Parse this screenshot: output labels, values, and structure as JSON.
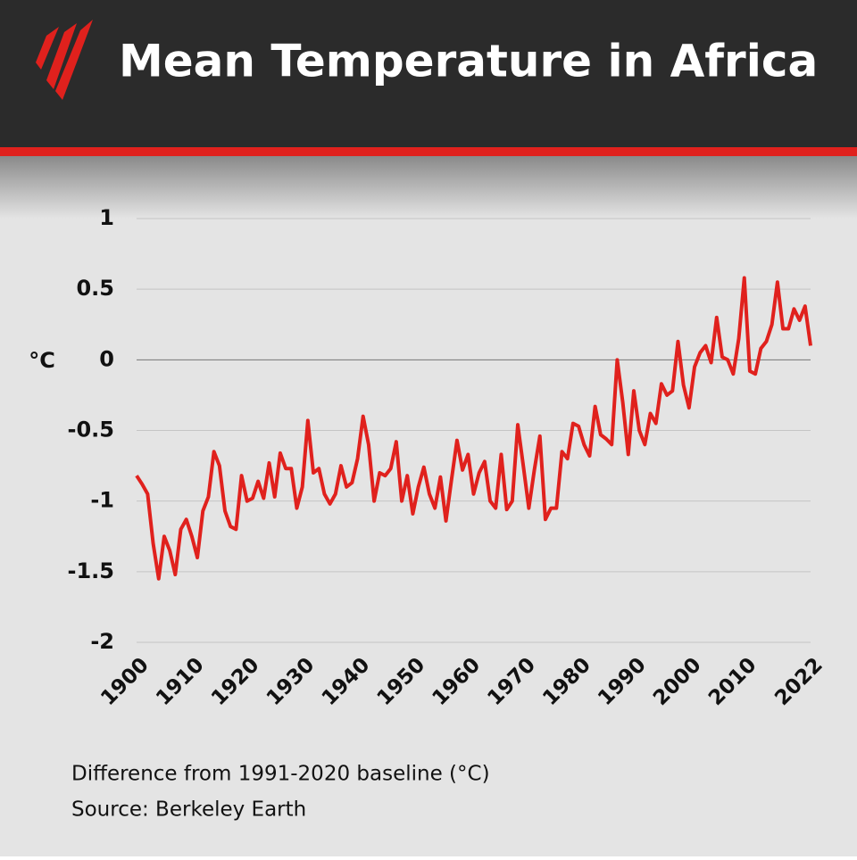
{
  "chart_data": {
    "type": "line",
    "title": "Mean Temperature in Africa",
    "y_label": "°C",
    "note": "Difference from 1991-2020 baseline (°C)",
    "source": "Source: Berkeley Earth",
    "x": [
      1900,
      1901,
      1902,
      1903,
      1904,
      1905,
      1906,
      1907,
      1908,
      1909,
      1910,
      1911,
      1912,
      1913,
      1914,
      1915,
      1916,
      1917,
      1918,
      1919,
      1920,
      1921,
      1922,
      1923,
      1924,
      1925,
      1926,
      1927,
      1928,
      1929,
      1930,
      1931,
      1932,
      1933,
      1934,
      1935,
      1936,
      1937,
      1938,
      1939,
      1940,
      1941,
      1942,
      1943,
      1944,
      1945,
      1946,
      1947,
      1948,
      1949,
      1950,
      1951,
      1952,
      1953,
      1954,
      1955,
      1956,
      1957,
      1958,
      1959,
      1960,
      1961,
      1962,
      1963,
      1964,
      1965,
      1966,
      1967,
      1968,
      1969,
      1970,
      1971,
      1972,
      1973,
      1974,
      1975,
      1976,
      1977,
      1978,
      1979,
      1980,
      1981,
      1982,
      1983,
      1984,
      1985,
      1986,
      1987,
      1988,
      1989,
      1990,
      1991,
      1992,
      1993,
      1994,
      1995,
      1996,
      1997,
      1998,
      1999,
      2000,
      2001,
      2002,
      2003,
      2004,
      2005,
      2006,
      2007,
      2008,
      2009,
      2010,
      2011,
      2012,
      2013,
      2014,
      2015,
      2016,
      2017,
      2018,
      2019,
      2020,
      2021,
      2022
    ],
    "series": [
      {
        "name": "Mean temperature",
        "color": "#e0211d",
        "values": [
          -0.82,
          -0.88,
          -0.95,
          -1.3,
          -1.55,
          -1.25,
          -1.35,
          -1.52,
          -1.2,
          -1.13,
          -1.25,
          -1.4,
          -1.07,
          -0.97,
          -0.65,
          -0.75,
          -1.07,
          -1.18,
          -1.2,
          -0.82,
          -1.0,
          -0.98,
          -0.86,
          -0.98,
          -0.73,
          -0.97,
          -0.66,
          -0.77,
          -0.77,
          -1.05,
          -0.9,
          -0.43,
          -0.8,
          -0.77,
          -0.95,
          -1.02,
          -0.95,
          -0.75,
          -0.9,
          -0.87,
          -0.7,
          -0.4,
          -0.6,
          -1.0,
          -0.8,
          -0.82,
          -0.77,
          -0.58,
          -1.0,
          -0.82,
          -1.09,
          -0.9,
          -0.76,
          -0.95,
          -1.05,
          -0.83,
          -1.14,
          -0.85,
          -0.57,
          -0.78,
          -0.67,
          -0.95,
          -0.8,
          -0.72,
          -1.0,
          -1.05,
          -0.67,
          -1.06,
          -1.0,
          -0.46,
          -0.75,
          -1.05,
          -0.78,
          -0.54,
          -1.13,
          -1.05,
          -1.05,
          -0.65,
          -0.7,
          -0.45,
          -0.47,
          -0.6,
          -0.68,
          -0.33,
          -0.53,
          -0.56,
          -0.6,
          0.0,
          -0.3,
          -0.67,
          -0.22,
          -0.5,
          -0.6,
          -0.38,
          -0.45,
          -0.17,
          -0.25,
          -0.22,
          0.13,
          -0.18,
          -0.34,
          -0.05,
          0.05,
          0.1,
          -0.02,
          0.3,
          0.02,
          0.0,
          -0.1,
          0.15,
          0.58,
          -0.08,
          -0.1,
          0.08,
          0.13,
          0.25,
          0.55,
          0.22,
          0.22,
          0.36,
          0.28,
          0.38,
          0.1
        ]
      }
    ],
    "xlim": [
      1900,
      2022
    ],
    "xticks": [
      1900,
      1910,
      1920,
      1930,
      1940,
      1950,
      1960,
      1970,
      1980,
      1990,
      2000,
      2010,
      2022
    ],
    "ylim": [
      -2,
      1
    ],
    "yticks": [
      1,
      0.5,
      0,
      -0.5,
      -1,
      -1.5,
      -2
    ],
    "grid": true
  }
}
